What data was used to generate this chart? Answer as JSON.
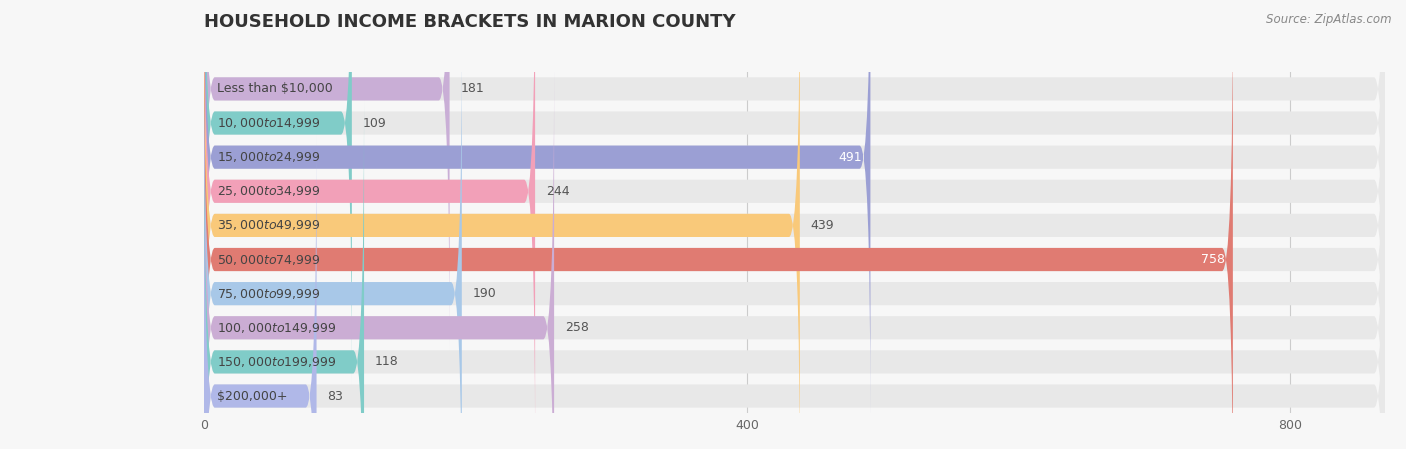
{
  "title": "HOUSEHOLD INCOME BRACKETS IN MARION COUNTY",
  "source": "Source: ZipAtlas.com",
  "categories": [
    "Less than $10,000",
    "$10,000 to $14,999",
    "$15,000 to $24,999",
    "$25,000 to $34,999",
    "$35,000 to $49,999",
    "$50,000 to $74,999",
    "$75,000 to $99,999",
    "$100,000 to $149,999",
    "$150,000 to $199,999",
    "$200,000+"
  ],
  "values": [
    181,
    109,
    491,
    244,
    439,
    758,
    190,
    258,
    118,
    83
  ],
  "colors": [
    "#c9aed6",
    "#80ccc8",
    "#9b9fd4",
    "#f2a0b8",
    "#f9c97a",
    "#e07b72",
    "#a8c8e8",
    "#cbadd4",
    "#80ccc8",
    "#b0b8e8"
  ],
  "bar_height": 0.68,
  "xlim": [
    0,
    870
  ],
  "xticks": [
    0,
    400,
    800
  ],
  "background_color": "#f7f7f7",
  "bar_bg_color": "#e8e8e8",
  "title_fontsize": 13,
  "label_fontsize": 9,
  "value_fontsize": 9
}
